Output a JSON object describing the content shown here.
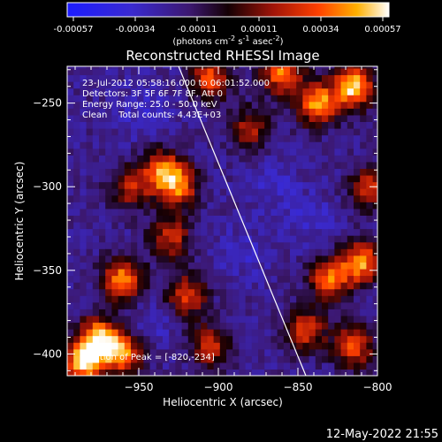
{
  "colorbar": {
    "ticks": [
      "-0.00057",
      "-0.00034",
      "-0.00011",
      "0.00011",
      "0.00034",
      "0.00057"
    ],
    "units_html": "(photons cm<tspan baseline-shift=\"super\" font-size=\"8\">-2</tspan> s<tspan baseline-shift=\"super\" font-size=\"8\">-1</tspan> asec<tspan baseline-shift=\"super\" font-size=\"8\">-2</tspan>)"
  },
  "chart_data": {
    "type": "heatmap",
    "title": "Reconstructed RHESSI Image",
    "xlabel": "Heliocentric X (arcsec)",
    "ylabel": "Heliocentric Y (arcsec)",
    "xlim": [
      -995,
      -800
    ],
    "ylim": [
      -413,
      -228
    ],
    "xticks": [
      -950,
      -900,
      -850,
      -800
    ],
    "yticks": [
      -250,
      -300,
      -350,
      -400
    ],
    "clim": [
      -0.00057,
      0.00057
    ],
    "limb_line": {
      "x": [
        -925,
        -845
      ],
      "y": [
        -228,
        -413
      ]
    },
    "bright_regions": [
      {
        "x": -815,
        "y": -240,
        "level": 1.0
      },
      {
        "x": -838,
        "y": -250,
        "level": 0.9
      },
      {
        "x": -860,
        "y": -232,
        "level": 0.8
      },
      {
        "x": -905,
        "y": -235,
        "level": 0.7
      },
      {
        "x": -935,
        "y": -290,
        "level": 0.75
      },
      {
        "x": -925,
        "y": -300,
        "level": 0.7
      },
      {
        "x": -955,
        "y": -300,
        "level": 0.55
      },
      {
        "x": -930,
        "y": -330,
        "level": 0.6
      },
      {
        "x": -960,
        "y": -355,
        "level": 0.85
      },
      {
        "x": -975,
        "y": -390,
        "level": 0.9
      },
      {
        "x": -985,
        "y": -405,
        "level": 1.0
      },
      {
        "x": -920,
        "y": -365,
        "level": 0.65
      },
      {
        "x": -905,
        "y": -395,
        "level": 0.6
      },
      {
        "x": -960,
        "y": -400,
        "level": 0.8
      },
      {
        "x": -880,
        "y": -265,
        "level": 0.5
      },
      {
        "x": -810,
        "y": -345,
        "level": 0.85
      },
      {
        "x": -830,
        "y": -355,
        "level": 0.75
      },
      {
        "x": -805,
        "y": -300,
        "level": 0.6
      },
      {
        "x": -845,
        "y": -385,
        "level": 0.65
      },
      {
        "x": -815,
        "y": -395,
        "level": 0.7
      }
    ],
    "dark_regions": [
      {
        "x": -945,
        "y": -255,
        "level": 0.5
      },
      {
        "x": -865,
        "y": -300,
        "level": 0.4
      },
      {
        "x": -885,
        "y": -340,
        "level": 0.4
      },
      {
        "x": -940,
        "y": -380,
        "level": 0.35
      },
      {
        "x": -840,
        "y": -320,
        "level": 0.4
      }
    ]
  },
  "annotations": {
    "time": "23-Jul-2012 05:58:16.000 to 06:01:52.000",
    "detectors": "Detectors: 3F 5F 6F 7F 8F, Att 0",
    "energy": "Energy Range: 25.0 - 50.0 keV",
    "clean": "Clean    Total counts: 4.43E+03",
    "peak": "Position of Peak = [-820,-234]"
  },
  "footer": {
    "timestamp": "12-May-2022 21:55"
  }
}
